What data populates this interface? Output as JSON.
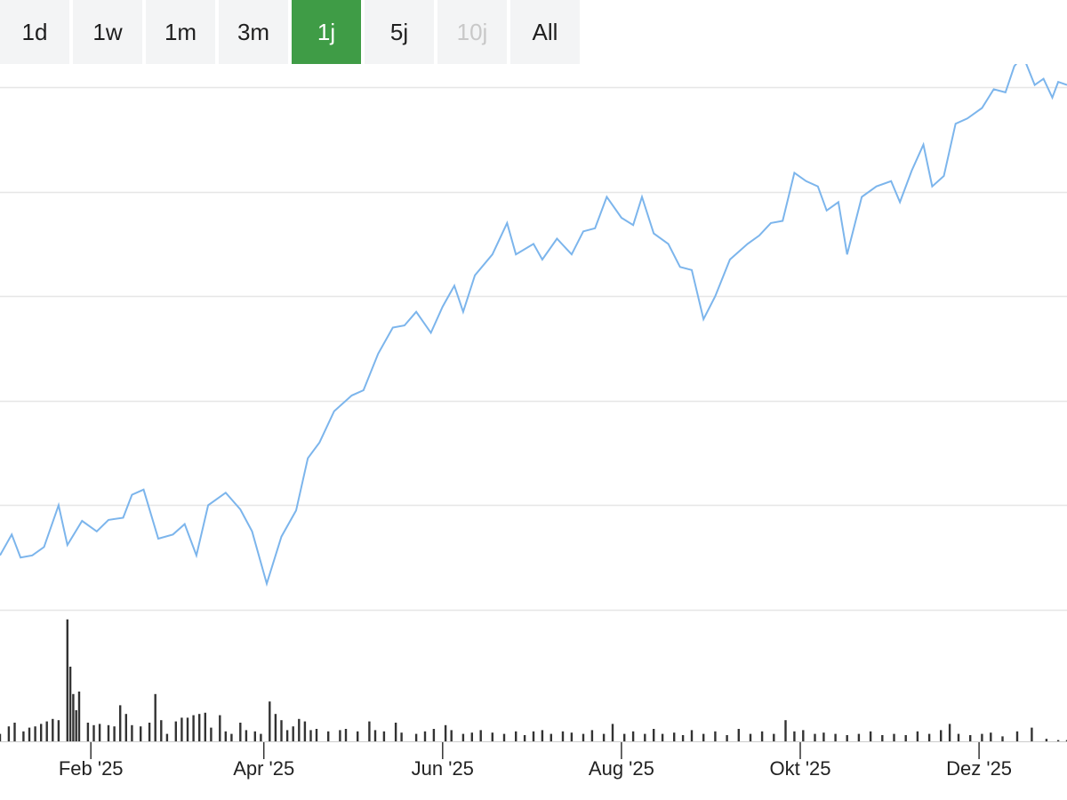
{
  "range_selector": {
    "buttons": [
      {
        "label": "1d",
        "state": "normal"
      },
      {
        "label": "1w",
        "state": "normal"
      },
      {
        "label": "1m",
        "state": "normal"
      },
      {
        "label": "3m",
        "state": "normal"
      },
      {
        "label": "1j",
        "state": "active"
      },
      {
        "label": "5j",
        "state": "normal"
      },
      {
        "label": "10j",
        "state": "disabled"
      },
      {
        "label": "All",
        "state": "normal"
      }
    ]
  },
  "colors": {
    "accent": "#3f9c46",
    "price_line": "#7cb5ec",
    "volume_bars": "#333333",
    "gridlines": "#e6e6e6"
  },
  "chart_data": {
    "type": "line",
    "grid": true,
    "x_ticks": [
      "Feb '25",
      "Apr '25",
      "Jun '25",
      "Aug '25",
      "Okt '25",
      "Dez '25"
    ],
    "x_tick_dates": [
      "2025-02-01",
      "2025-04-01",
      "2025-06-01",
      "2025-08-01",
      "2025-10-01",
      "2025-12-01"
    ],
    "x_range": [
      "2025-01-01",
      "2025-12-31"
    ],
    "price": {
      "ylim": [
        0,
        5
      ],
      "points": [
        [
          "2025-01-01",
          0.52
        ],
        [
          "2025-01-05",
          0.72
        ],
        [
          "2025-01-08",
          0.5
        ],
        [
          "2025-01-12",
          0.52
        ],
        [
          "2025-01-16",
          0.6
        ],
        [
          "2025-01-21",
          1.0
        ],
        [
          "2025-01-24",
          0.62
        ],
        [
          "2025-01-29",
          0.85
        ],
        [
          "2025-02-03",
          0.75
        ],
        [
          "2025-02-07",
          0.86
        ],
        [
          "2025-02-12",
          0.88
        ],
        [
          "2025-02-15",
          1.1
        ],
        [
          "2025-02-19",
          1.15
        ],
        [
          "2025-02-24",
          0.68
        ],
        [
          "2025-03-01",
          0.72
        ],
        [
          "2025-03-05",
          0.82
        ],
        [
          "2025-03-09",
          0.52
        ],
        [
          "2025-03-13",
          1.0
        ],
        [
          "2025-03-19",
          1.12
        ],
        [
          "2025-03-24",
          0.96
        ],
        [
          "2025-03-28",
          0.75
        ],
        [
          "2025-04-02",
          0.25
        ],
        [
          "2025-04-07",
          0.7
        ],
        [
          "2025-04-12",
          0.95
        ],
        [
          "2025-04-16",
          1.45
        ],
        [
          "2025-04-20",
          1.6
        ],
        [
          "2025-04-25",
          1.9
        ],
        [
          "2025-05-01",
          2.05
        ],
        [
          "2025-05-05",
          2.1
        ],
        [
          "2025-05-10",
          2.45
        ],
        [
          "2025-05-15",
          2.7
        ],
        [
          "2025-05-19",
          2.72
        ],
        [
          "2025-05-23",
          2.85
        ],
        [
          "2025-05-28",
          2.65
        ],
        [
          "2025-06-01",
          2.9
        ],
        [
          "2025-06-05",
          3.1
        ],
        [
          "2025-06-08",
          2.85
        ],
        [
          "2025-06-12",
          3.2
        ],
        [
          "2025-06-18",
          3.4
        ],
        [
          "2025-06-23",
          3.7
        ],
        [
          "2025-06-26",
          3.4
        ],
        [
          "2025-07-02",
          3.5
        ],
        [
          "2025-07-05",
          3.35
        ],
        [
          "2025-07-10",
          3.55
        ],
        [
          "2025-07-15",
          3.4
        ],
        [
          "2025-07-19",
          3.62
        ],
        [
          "2025-07-23",
          3.65
        ],
        [
          "2025-07-27",
          3.95
        ],
        [
          "2025-08-01",
          3.75
        ],
        [
          "2025-08-05",
          3.68
        ],
        [
          "2025-08-08",
          3.95
        ],
        [
          "2025-08-12",
          3.6
        ],
        [
          "2025-08-17",
          3.5
        ],
        [
          "2025-08-21",
          3.28
        ],
        [
          "2025-08-25",
          3.25
        ],
        [
          "2025-08-29",
          2.78
        ],
        [
          "2025-09-02",
          3.0
        ],
        [
          "2025-09-07",
          3.35
        ],
        [
          "2025-09-13",
          3.5
        ],
        [
          "2025-09-17",
          3.58
        ],
        [
          "2025-09-21",
          3.7
        ],
        [
          "2025-09-25",
          3.72
        ],
        [
          "2025-09-29",
          4.18
        ],
        [
          "2025-10-03",
          4.1
        ],
        [
          "2025-10-07",
          4.05
        ],
        [
          "2025-10-10",
          3.82
        ],
        [
          "2025-10-14",
          3.9
        ],
        [
          "2025-10-17",
          3.4
        ],
        [
          "2025-10-22",
          3.95
        ],
        [
          "2025-10-27",
          4.05
        ],
        [
          "2025-11-01",
          4.1
        ],
        [
          "2025-11-04",
          3.9
        ],
        [
          "2025-11-08",
          4.2
        ],
        [
          "2025-11-12",
          4.45
        ],
        [
          "2025-11-15",
          4.05
        ],
        [
          "2025-11-19",
          4.15
        ],
        [
          "2025-11-23",
          4.65
        ],
        [
          "2025-11-27",
          4.7
        ],
        [
          "2025-12-02",
          4.8
        ],
        [
          "2025-12-06",
          4.98
        ],
        [
          "2025-12-10",
          4.95
        ],
        [
          "2025-12-13",
          5.2
        ],
        [
          "2025-12-16",
          5.3
        ],
        [
          "2025-12-20",
          5.02
        ],
        [
          "2025-12-23",
          5.08
        ],
        [
          "2025-12-26",
          4.9
        ],
        [
          "2025-12-28",
          5.05
        ],
        [
          "2025-12-31",
          5.02
        ]
      ]
    },
    "volume": {
      "ylim": [
        0,
        1
      ],
      "bars": [
        [
          "2025-01-01",
          0.06
        ],
        [
          "2025-01-04",
          0.12
        ],
        [
          "2025-01-06",
          0.15
        ],
        [
          "2025-01-09",
          0.08
        ],
        [
          "2025-01-11",
          0.11
        ],
        [
          "2025-01-13",
          0.12
        ],
        [
          "2025-01-15",
          0.14
        ],
        [
          "2025-01-17",
          0.16
        ],
        [
          "2025-01-19",
          0.18
        ],
        [
          "2025-01-21",
          0.17
        ],
        [
          "2025-01-24",
          0.98
        ],
        [
          "2025-01-25",
          0.6
        ],
        [
          "2025-01-26",
          0.38
        ],
        [
          "2025-01-27",
          0.25
        ],
        [
          "2025-01-28",
          0.4
        ],
        [
          "2025-01-31",
          0.15
        ],
        [
          "2025-02-02",
          0.13
        ],
        [
          "2025-02-04",
          0.14
        ],
        [
          "2025-02-07",
          0.13
        ],
        [
          "2025-02-09",
          0.12
        ],
        [
          "2025-02-11",
          0.29
        ],
        [
          "2025-02-13",
          0.22
        ],
        [
          "2025-02-15",
          0.13
        ],
        [
          "2025-02-18",
          0.12
        ],
        [
          "2025-02-21",
          0.15
        ],
        [
          "2025-02-23",
          0.38
        ],
        [
          "2025-02-25",
          0.17
        ],
        [
          "2025-02-27",
          0.06
        ],
        [
          "2025-03-02",
          0.16
        ],
        [
          "2025-03-04",
          0.19
        ],
        [
          "2025-03-06",
          0.19
        ],
        [
          "2025-03-08",
          0.21
        ],
        [
          "2025-03-10",
          0.22
        ],
        [
          "2025-03-12",
          0.23
        ],
        [
          "2025-03-14",
          0.11
        ],
        [
          "2025-03-17",
          0.21
        ],
        [
          "2025-03-19",
          0.08
        ],
        [
          "2025-03-21",
          0.06
        ],
        [
          "2025-03-24",
          0.15
        ],
        [
          "2025-03-26",
          0.09
        ],
        [
          "2025-03-29",
          0.08
        ],
        [
          "2025-03-31",
          0.06
        ],
        [
          "2025-04-03",
          0.32
        ],
        [
          "2025-04-05",
          0.22
        ],
        [
          "2025-04-07",
          0.17
        ],
        [
          "2025-04-09",
          0.09
        ],
        [
          "2025-04-11",
          0.12
        ],
        [
          "2025-04-13",
          0.18
        ],
        [
          "2025-04-15",
          0.16
        ],
        [
          "2025-04-17",
          0.09
        ],
        [
          "2025-04-19",
          0.1
        ],
        [
          "2025-04-23",
          0.08
        ],
        [
          "2025-04-27",
          0.09
        ],
        [
          "2025-04-29",
          0.1
        ],
        [
          "2025-05-03",
          0.08
        ],
        [
          "2025-05-07",
          0.16
        ],
        [
          "2025-05-09",
          0.09
        ],
        [
          "2025-05-12",
          0.08
        ],
        [
          "2025-05-16",
          0.15
        ],
        [
          "2025-05-18",
          0.07
        ],
        [
          "2025-05-23",
          0.06
        ],
        [
          "2025-05-26",
          0.08
        ],
        [
          "2025-05-29",
          0.1
        ],
        [
          "2025-06-02",
          0.13
        ],
        [
          "2025-06-04",
          0.09
        ],
        [
          "2025-06-08",
          0.06
        ],
        [
          "2025-06-11",
          0.07
        ],
        [
          "2025-06-14",
          0.09
        ],
        [
          "2025-06-18",
          0.07
        ],
        [
          "2025-06-22",
          0.06
        ],
        [
          "2025-06-26",
          0.08
        ],
        [
          "2025-06-29",
          0.05
        ],
        [
          "2025-07-02",
          0.08
        ],
        [
          "2025-07-05",
          0.09
        ],
        [
          "2025-07-08",
          0.06
        ],
        [
          "2025-07-12",
          0.08
        ],
        [
          "2025-07-15",
          0.07
        ],
        [
          "2025-07-19",
          0.06
        ],
        [
          "2025-07-22",
          0.09
        ],
        [
          "2025-07-26",
          0.06
        ],
        [
          "2025-07-29",
          0.14
        ],
        [
          "2025-08-02",
          0.06
        ],
        [
          "2025-08-05",
          0.08
        ],
        [
          "2025-08-09",
          0.06
        ],
        [
          "2025-08-12",
          0.1
        ],
        [
          "2025-08-15",
          0.06
        ],
        [
          "2025-08-19",
          0.07
        ],
        [
          "2025-08-22",
          0.05
        ],
        [
          "2025-08-25",
          0.09
        ],
        [
          "2025-08-29",
          0.06
        ],
        [
          "2025-09-02",
          0.08
        ],
        [
          "2025-09-06",
          0.05
        ],
        [
          "2025-09-10",
          0.1
        ],
        [
          "2025-09-14",
          0.06
        ],
        [
          "2025-09-18",
          0.08
        ],
        [
          "2025-09-22",
          0.06
        ],
        [
          "2025-09-26",
          0.17
        ],
        [
          "2025-09-29",
          0.08
        ],
        [
          "2025-10-02",
          0.09
        ],
        [
          "2025-10-06",
          0.06
        ],
        [
          "2025-10-09",
          0.07
        ],
        [
          "2025-10-13",
          0.06
        ],
        [
          "2025-10-17",
          0.05
        ],
        [
          "2025-10-21",
          0.06
        ],
        [
          "2025-10-25",
          0.08
        ],
        [
          "2025-10-29",
          0.05
        ],
        [
          "2025-11-02",
          0.06
        ],
        [
          "2025-11-06",
          0.05
        ],
        [
          "2025-11-10",
          0.08
        ],
        [
          "2025-11-14",
          0.06
        ],
        [
          "2025-11-18",
          0.09
        ],
        [
          "2025-11-21",
          0.14
        ],
        [
          "2025-11-24",
          0.06
        ],
        [
          "2025-11-28",
          0.05
        ],
        [
          "2025-12-02",
          0.06
        ],
        [
          "2025-12-05",
          0.07
        ],
        [
          "2025-12-09",
          0.04
        ],
        [
          "2025-12-14",
          0.08
        ],
        [
          "2025-12-19",
          0.11
        ],
        [
          "2025-12-24",
          0.02
        ],
        [
          "2025-12-28",
          0.01
        ],
        [
          "2025-12-31",
          0.01
        ]
      ]
    }
  }
}
